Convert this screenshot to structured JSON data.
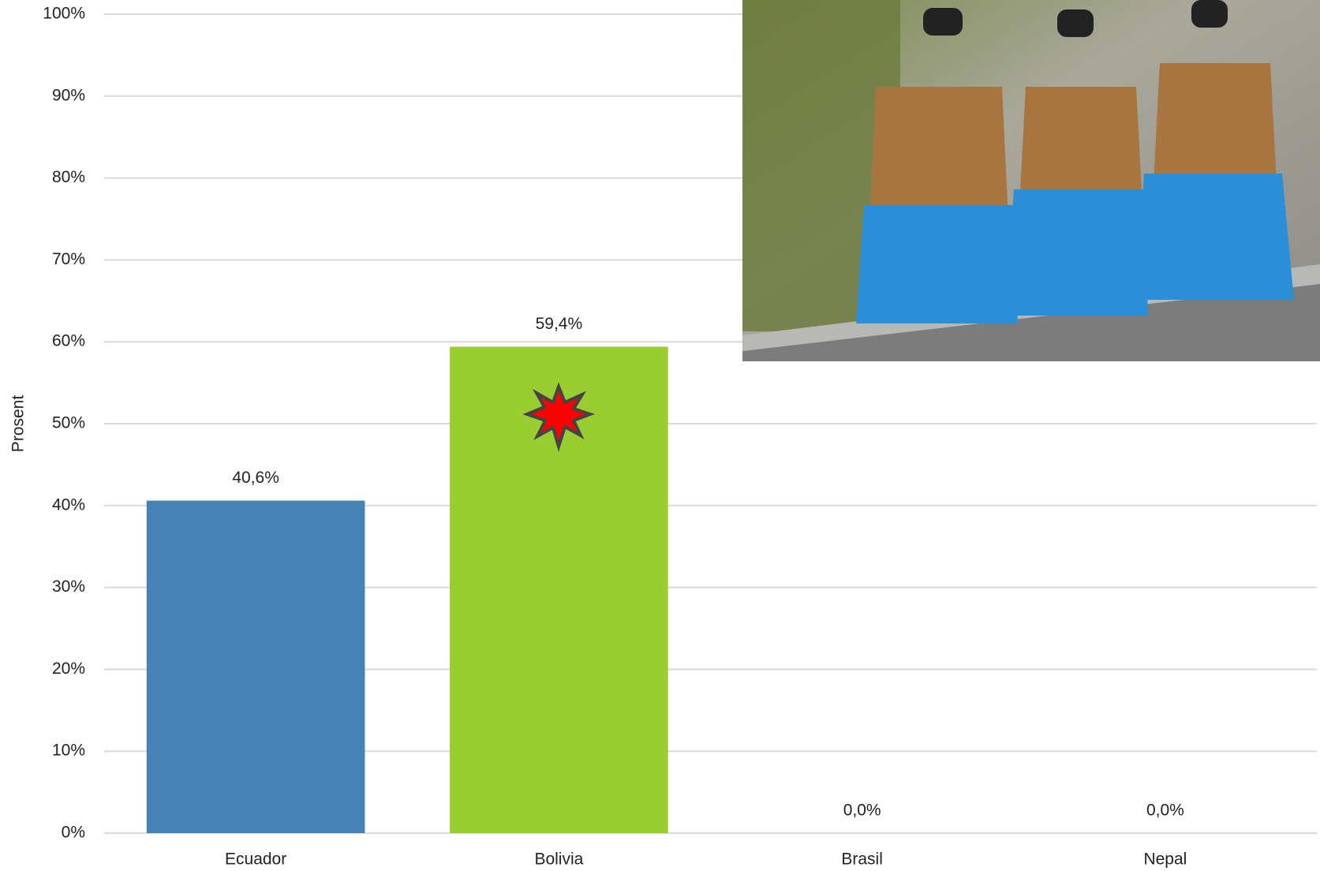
{
  "chart_data": {
    "type": "bar",
    "y_label": "Prosent",
    "categories": [
      "Ecuador",
      "Bolivia",
      "Brasil",
      "Nepal"
    ],
    "values": [
      40.6,
      59.4,
      0,
      0
    ],
    "value_labels": [
      "40,6%",
      "59,4%",
      "0,0%",
      "0,0%"
    ],
    "colors": [
      "#4682b4",
      "#9acd32",
      "#4682b4",
      "#9acd32"
    ],
    "ylim": [
      0,
      100
    ],
    "yticks": [
      {
        "value": 0,
        "label": "0%"
      },
      {
        "value": 10,
        "label": "10%"
      },
      {
        "value": 20,
        "label": "20%"
      },
      {
        "value": 30,
        "label": "30%"
      },
      {
        "value": 40,
        "label": "40%"
      },
      {
        "value": 50,
        "label": "50%"
      },
      {
        "value": 60,
        "label": "60%"
      },
      {
        "value": 70,
        "label": "70%"
      },
      {
        "value": 80,
        "label": "80%"
      },
      {
        "value": 90,
        "label": "90%"
      },
      {
        "value": 100,
        "label": "100%"
      }
    ],
    "grid": true
  }
}
